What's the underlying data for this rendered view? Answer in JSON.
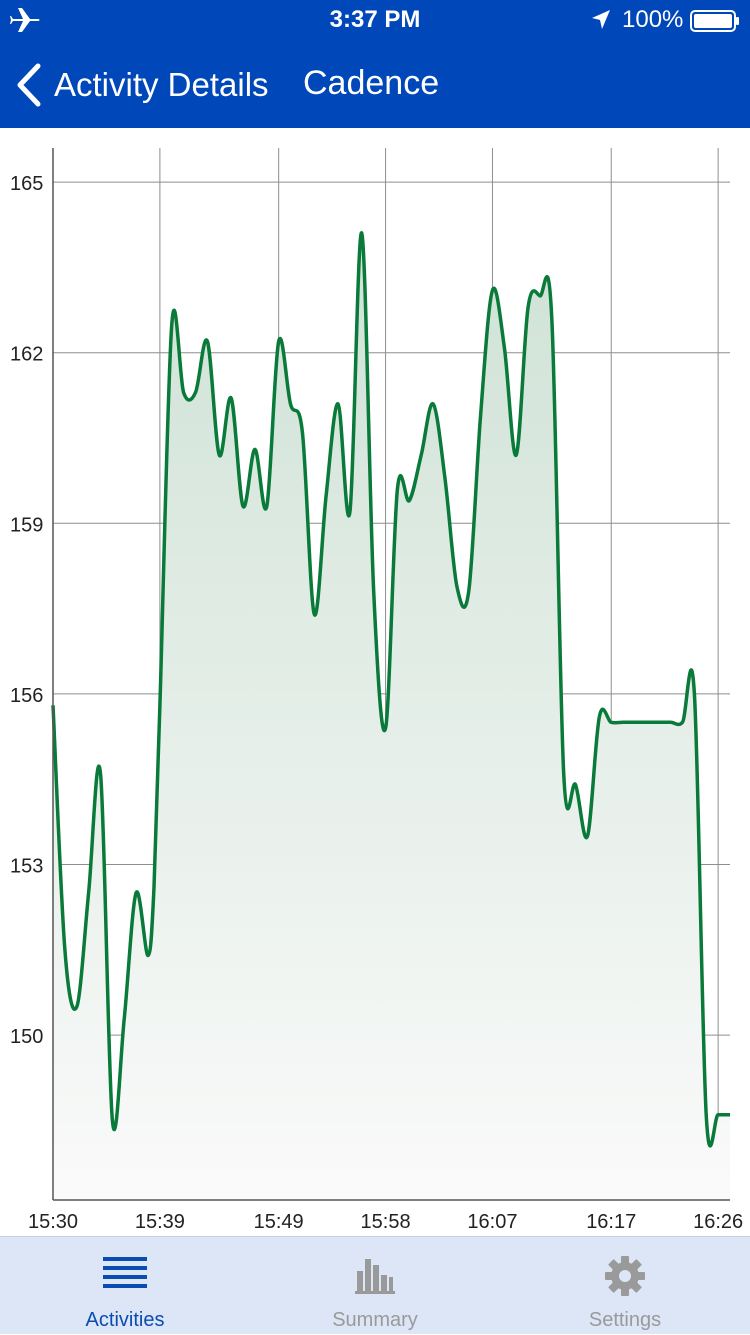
{
  "status_bar": {
    "time": "3:37 PM",
    "battery_text": "100%"
  },
  "nav": {
    "back_label": "Activity Details",
    "title": "Cadence"
  },
  "chart_data": {
    "type": "area",
    "title": "Cadence",
    "xlabel": "",
    "ylabel": "",
    "x_ticks": [
      "15:30",
      "15:39",
      "15:49",
      "15:58",
      "16:07",
      "16:17",
      "16:26"
    ],
    "y_ticks": [
      150,
      153,
      156,
      159,
      162,
      165
    ],
    "xlim": [
      "15:30",
      "16:27"
    ],
    "ylim": [
      147.1,
      165.6
    ],
    "grid": true,
    "color": "#0a7a3a",
    "series": [
      {
        "x": [
          "15:30",
          "15:31",
          "15:32",
          "15:33",
          "15:34",
          "15:35",
          "15:36",
          "15:37",
          "15:38",
          "15:38:30",
          "15:39",
          "15:40",
          "15:41",
          "15:42",
          "15:43",
          "15:44",
          "15:45",
          "15:46",
          "15:47",
          "15:48",
          "15:49",
          "15:50",
          "15:51",
          "15:52",
          "15:53",
          "15:54",
          "15:55",
          "15:56",
          "15:57",
          "15:58",
          "15:59",
          "16:00",
          "16:01",
          "16:02",
          "16:03",
          "16:04",
          "16:05",
          "16:06",
          "16:07",
          "16:08",
          "16:09",
          "16:10",
          "16:11",
          "16:12",
          "16:13",
          "16:14",
          "16:15",
          "16:16",
          "16:17",
          "16:18",
          "16:19",
          "16:20",
          "16:21",
          "16:22",
          "16:23",
          "16:24",
          "16:25",
          "16:26",
          "16:27"
        ],
        "values": [
          155.8,
          151.5,
          150.5,
          152.5,
          154.6,
          148.5,
          150.3,
          152.5,
          151.4,
          152.6,
          155.8,
          162.5,
          161.3,
          161.3,
          162.2,
          160.2,
          161.2,
          159.3,
          160.3,
          159.3,
          162.2,
          161.1,
          160.6,
          157.4,
          159.5,
          161.1,
          159.2,
          164.1,
          157.8,
          155.4,
          159.6,
          159.4,
          160.2,
          161.1,
          159.8,
          157.9,
          157.8,
          160.9,
          163.1,
          162.1,
          160.2,
          162.8,
          163.0,
          162.6,
          154.6,
          154.4,
          153.5,
          155.6,
          155.5,
          155.5,
          155.5,
          155.5,
          155.5,
          155.5,
          155.5,
          156.0,
          148.6,
          148.6,
          148.6
        ]
      }
    ]
  },
  "tabs": [
    {
      "label": "Activities",
      "icon": "list-icon",
      "active": true
    },
    {
      "label": "Summary",
      "icon": "bar-chart-icon",
      "active": false
    },
    {
      "label": "Settings",
      "icon": "gear-icon",
      "active": false
    }
  ],
  "colors": {
    "header": "#0047b9",
    "line": "#0a7a3a",
    "tab_active": "#0b4cb3",
    "tab_inactive": "#9a9a9a",
    "tab_bar_bg": "#dde6f6"
  }
}
